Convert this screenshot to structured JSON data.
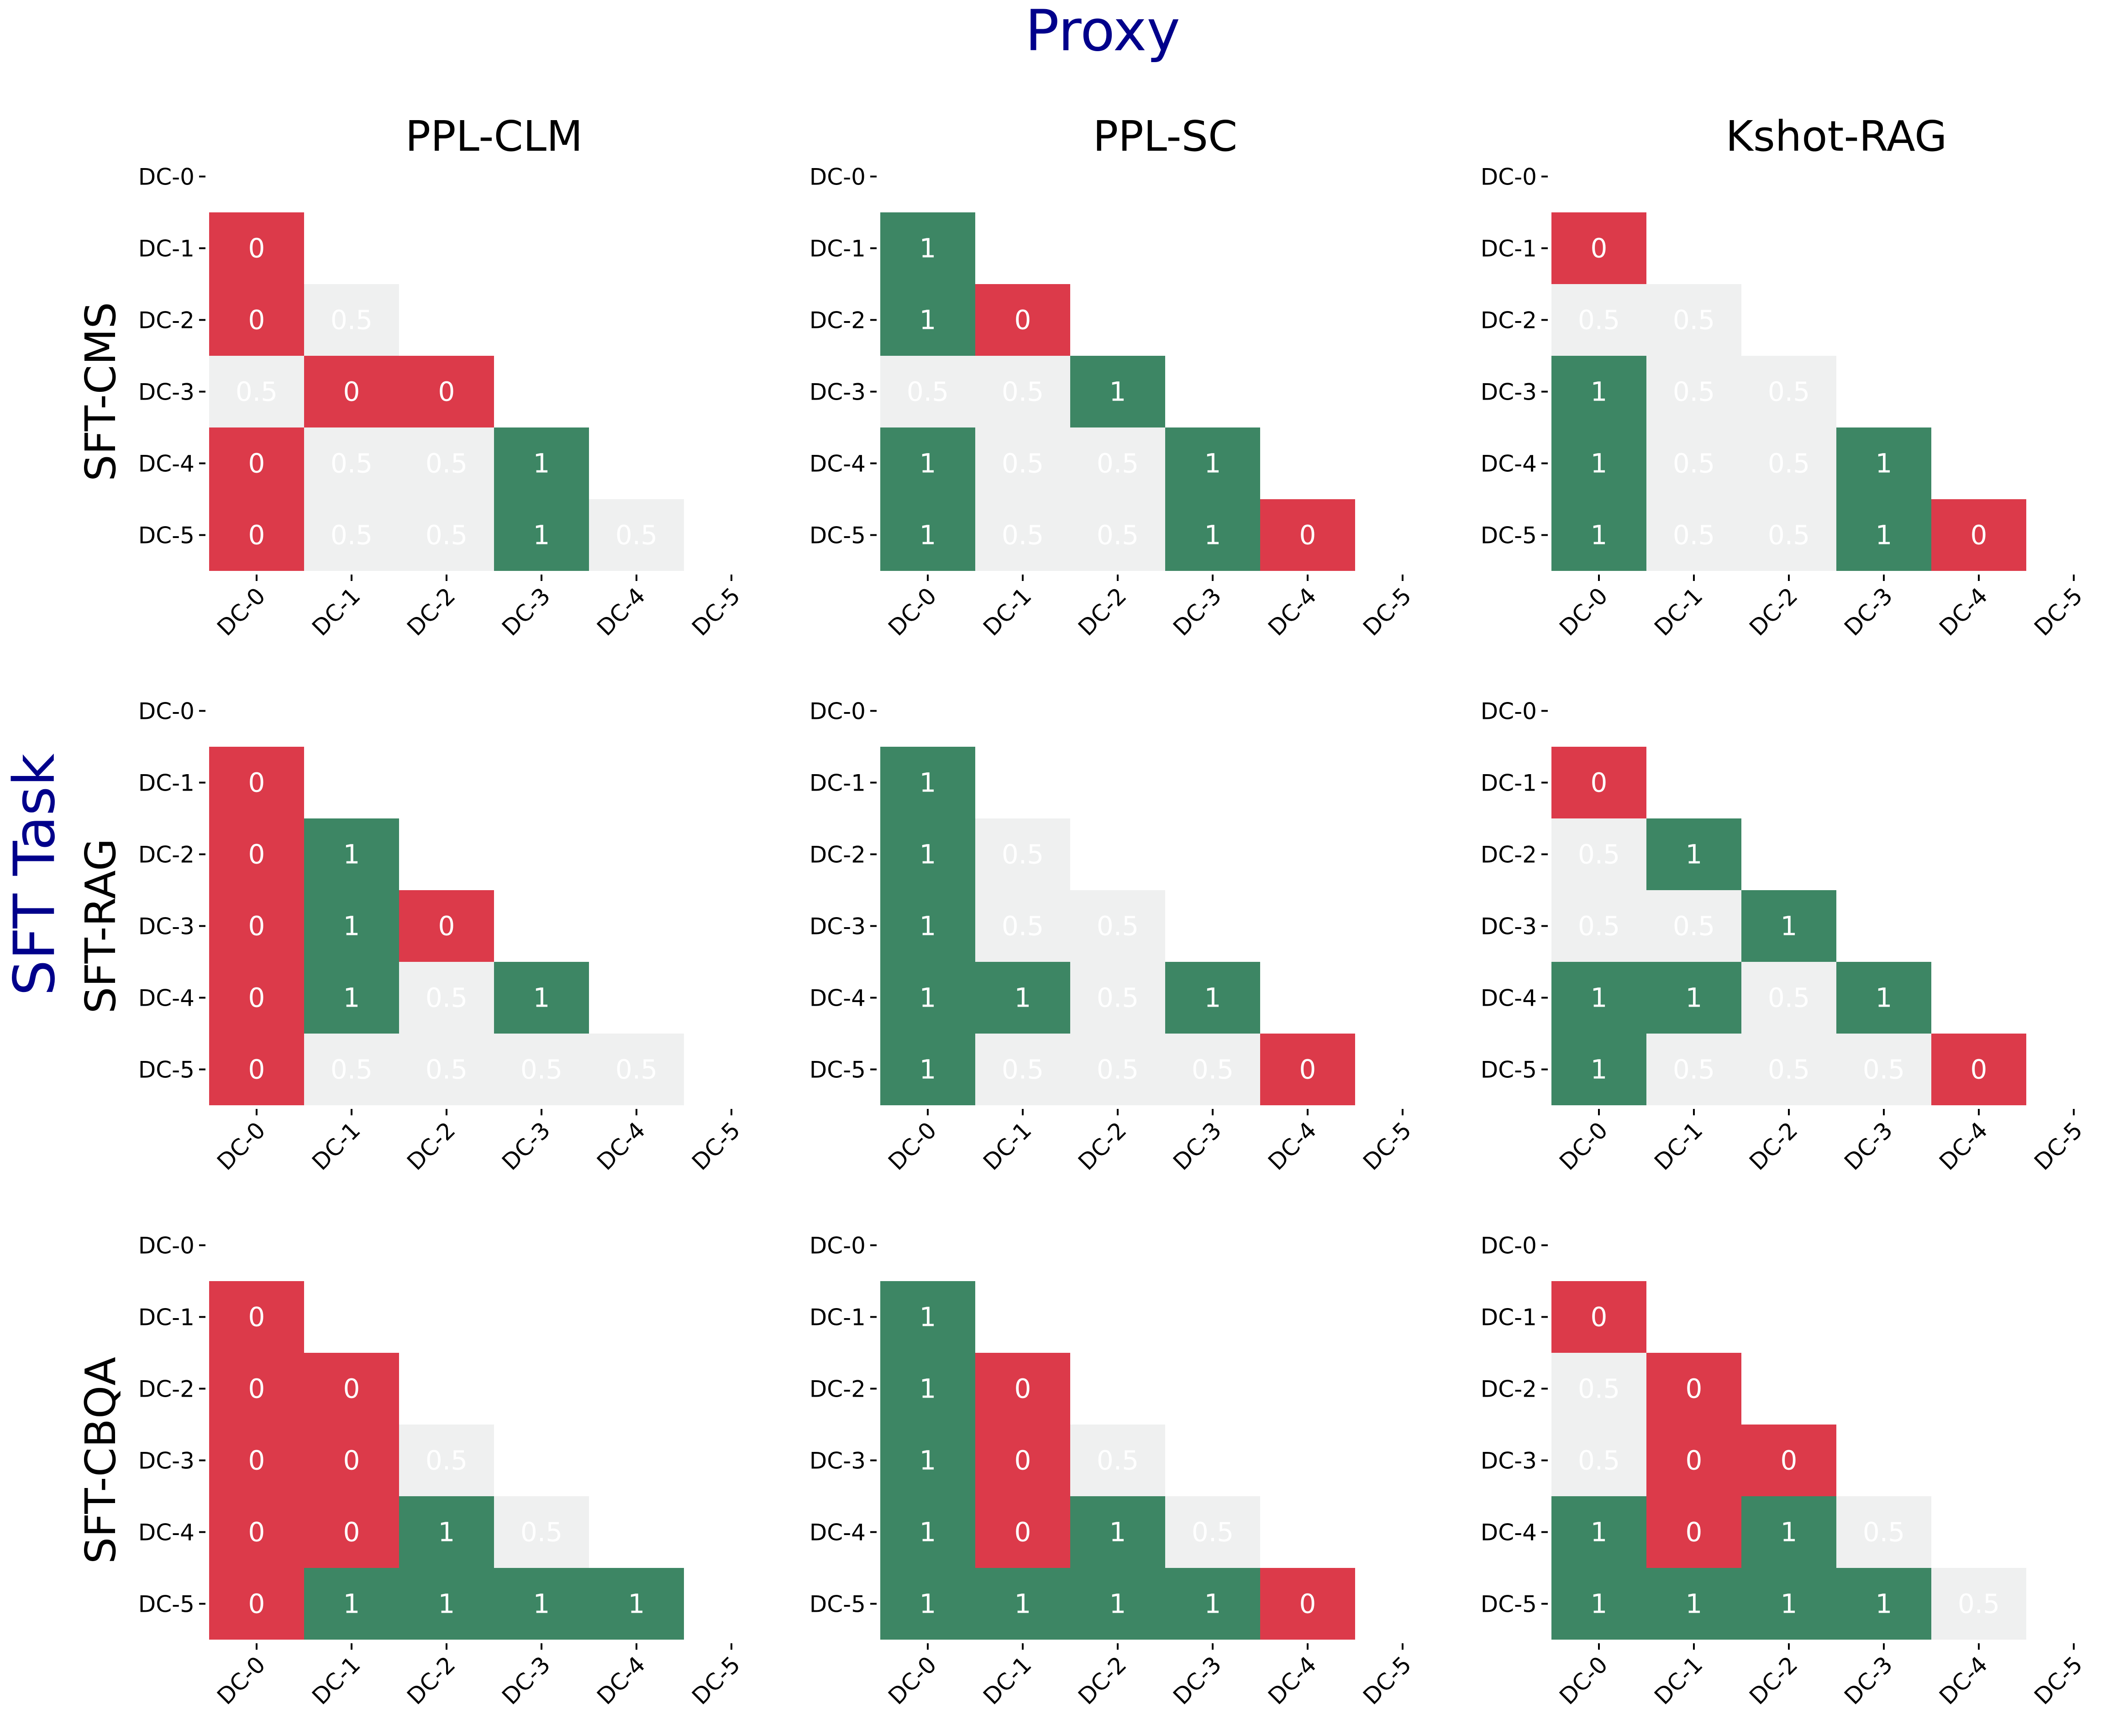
{
  "figure": {
    "title": "Proxy",
    "row_group_label": "SFT Task",
    "column_titles": [
      "PPL-CLM",
      "PPL-SC",
      "Kshot-RAG"
    ],
    "row_titles": [
      "SFT-CMS",
      "SFT-RAG",
      "SFT-CBQA"
    ]
  },
  "colors": {
    "value_0": "#dc3a4a",
    "value_0_5": "#eff0f0",
    "value_1": "#3d8664",
    "cell_text": "#ffffff",
    "title": "#00008b",
    "axis_text": "#000000"
  },
  "chart_data": [
    {
      "type": "heatmap",
      "row": "SFT-CMS",
      "column": "PPL-CLM",
      "x_ticks": [
        "DC-0",
        "DC-1",
        "DC-2",
        "DC-3",
        "DC-4",
        "DC-5"
      ],
      "y_ticks": [
        "DC-0",
        "DC-1",
        "DC-2",
        "DC-3",
        "DC-4",
        "DC-5"
      ],
      "values": [
        [],
        [
          0
        ],
        [
          0,
          0.5
        ],
        [
          0.5,
          0,
          0
        ],
        [
          0,
          0.5,
          0.5,
          1
        ],
        [
          0,
          0.5,
          0.5,
          1,
          0.5
        ]
      ]
    },
    {
      "type": "heatmap",
      "row": "SFT-CMS",
      "column": "PPL-SC",
      "x_ticks": [
        "DC-0",
        "DC-1",
        "DC-2",
        "DC-3",
        "DC-4",
        "DC-5"
      ],
      "y_ticks": [
        "DC-0",
        "DC-1",
        "DC-2",
        "DC-3",
        "DC-4",
        "DC-5"
      ],
      "values": [
        [],
        [
          1
        ],
        [
          1,
          0
        ],
        [
          0.5,
          0.5,
          1
        ],
        [
          1,
          0.5,
          0.5,
          1
        ],
        [
          1,
          0.5,
          0.5,
          1,
          0
        ]
      ]
    },
    {
      "type": "heatmap",
      "row": "SFT-CMS",
      "column": "Kshot-RAG",
      "x_ticks": [
        "DC-0",
        "DC-1",
        "DC-2",
        "DC-3",
        "DC-4",
        "DC-5"
      ],
      "y_ticks": [
        "DC-0",
        "DC-1",
        "DC-2",
        "DC-3",
        "DC-4",
        "DC-5"
      ],
      "values": [
        [],
        [
          0
        ],
        [
          0.5,
          0.5
        ],
        [
          1,
          0.5,
          0.5
        ],
        [
          1,
          0.5,
          0.5,
          1
        ],
        [
          1,
          0.5,
          0.5,
          1,
          0
        ]
      ]
    },
    {
      "type": "heatmap",
      "row": "SFT-RAG",
      "column": "PPL-CLM",
      "x_ticks": [
        "DC-0",
        "DC-1",
        "DC-2",
        "DC-3",
        "DC-4",
        "DC-5"
      ],
      "y_ticks": [
        "DC-0",
        "DC-1",
        "DC-2",
        "DC-3",
        "DC-4",
        "DC-5"
      ],
      "values": [
        [],
        [
          0
        ],
        [
          0,
          1
        ],
        [
          0,
          1,
          0
        ],
        [
          0,
          1,
          0.5,
          1
        ],
        [
          0,
          0.5,
          0.5,
          0.5,
          0.5
        ]
      ]
    },
    {
      "type": "heatmap",
      "row": "SFT-RAG",
      "column": "PPL-SC",
      "x_ticks": [
        "DC-0",
        "DC-1",
        "DC-2",
        "DC-3",
        "DC-4",
        "DC-5"
      ],
      "y_ticks": [
        "DC-0",
        "DC-1",
        "DC-2",
        "DC-3",
        "DC-4",
        "DC-5"
      ],
      "values": [
        [],
        [
          1
        ],
        [
          1,
          0.5
        ],
        [
          1,
          0.5,
          0.5
        ],
        [
          1,
          1,
          0.5,
          1
        ],
        [
          1,
          0.5,
          0.5,
          0.5,
          0
        ]
      ]
    },
    {
      "type": "heatmap",
      "row": "SFT-RAG",
      "column": "Kshot-RAG",
      "x_ticks": [
        "DC-0",
        "DC-1",
        "DC-2",
        "DC-3",
        "DC-4",
        "DC-5"
      ],
      "y_ticks": [
        "DC-0",
        "DC-1",
        "DC-2",
        "DC-3",
        "DC-4",
        "DC-5"
      ],
      "values": [
        [],
        [
          0
        ],
        [
          0.5,
          1
        ],
        [
          0.5,
          0.5,
          1
        ],
        [
          1,
          1,
          0.5,
          1
        ],
        [
          1,
          0.5,
          0.5,
          0.5,
          0
        ]
      ]
    },
    {
      "type": "heatmap",
      "row": "SFT-CBQA",
      "column": "PPL-CLM",
      "x_ticks": [
        "DC-0",
        "DC-1",
        "DC-2",
        "DC-3",
        "DC-4",
        "DC-5"
      ],
      "y_ticks": [
        "DC-0",
        "DC-1",
        "DC-2",
        "DC-3",
        "DC-4",
        "DC-5"
      ],
      "values": [
        [],
        [
          0
        ],
        [
          0,
          0
        ],
        [
          0,
          0,
          0.5
        ],
        [
          0,
          0,
          1,
          0.5
        ],
        [
          0,
          1,
          1,
          1,
          1
        ]
      ]
    },
    {
      "type": "heatmap",
      "row": "SFT-CBQA",
      "column": "PPL-SC",
      "x_ticks": [
        "DC-0",
        "DC-1",
        "DC-2",
        "DC-3",
        "DC-4",
        "DC-5"
      ],
      "y_ticks": [
        "DC-0",
        "DC-1",
        "DC-2",
        "DC-3",
        "DC-4",
        "DC-5"
      ],
      "values": [
        [],
        [
          1
        ],
        [
          1,
          0
        ],
        [
          1,
          0,
          0.5
        ],
        [
          1,
          0,
          1,
          0.5
        ],
        [
          1,
          1,
          1,
          1,
          0
        ]
      ]
    },
    {
      "type": "heatmap",
      "row": "SFT-CBQA",
      "column": "Kshot-RAG",
      "x_ticks": [
        "DC-0",
        "DC-1",
        "DC-2",
        "DC-3",
        "DC-4",
        "DC-5"
      ],
      "y_ticks": [
        "DC-0",
        "DC-1",
        "DC-2",
        "DC-3",
        "DC-4",
        "DC-5"
      ],
      "values": [
        [],
        [
          0
        ],
        [
          0.5,
          0
        ],
        [
          0.5,
          0,
          0
        ],
        [
          1,
          0,
          1,
          0.5
        ],
        [
          1,
          1,
          1,
          1,
          0.5
        ]
      ]
    }
  ]
}
